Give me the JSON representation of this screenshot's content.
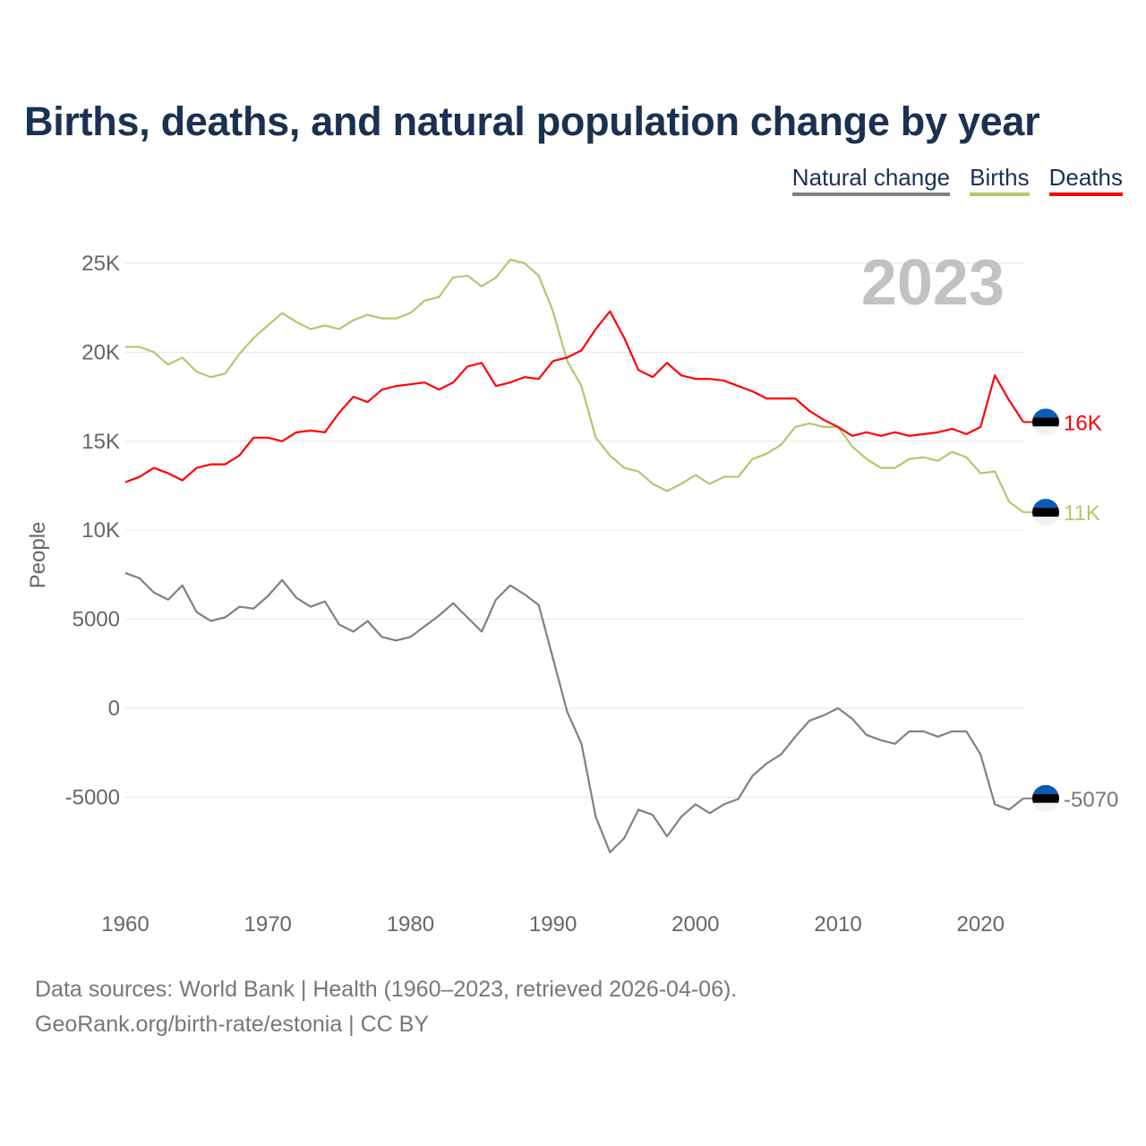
{
  "chart_data": {
    "type": "line",
    "title": "Births, deaths, and natural population change by year",
    "ylabel": "People",
    "xlabel": "",
    "current_year_label": "2023",
    "xlim": [
      1960,
      2023
    ],
    "ylim": [
      -10000,
      27000
    ],
    "grid": true,
    "legend_placement": "top-right",
    "y_ticks": [
      {
        "v": 25000,
        "label": "25K"
      },
      {
        "v": 20000,
        "label": "20K"
      },
      {
        "v": 15000,
        "label": "15K"
      },
      {
        "v": 10000,
        "label": "10K"
      },
      {
        "v": 5000,
        "label": "5000"
      },
      {
        "v": 0,
        "label": "0"
      },
      {
        "v": -5000,
        "label": "-5000"
      }
    ],
    "x_ticks": [
      {
        "v": 1960,
        "label": "1960"
      },
      {
        "v": 1970,
        "label": "1970"
      },
      {
        "v": 1980,
        "label": "1980"
      },
      {
        "v": 1990,
        "label": "1990"
      },
      {
        "v": 2000,
        "label": "2000"
      },
      {
        "v": 2010,
        "label": "2010"
      },
      {
        "v": 2020,
        "label": "2020"
      }
    ],
    "x_start": 1960,
    "series": [
      {
        "name": "Natural change",
        "color": "#808080",
        "end_label": "-5070",
        "values": [
          7600,
          7300,
          6500,
          6100,
          6900,
          5400,
          4900,
          5100,
          5700,
          5600,
          6300,
          7200,
          6200,
          5700,
          6000,
          4700,
          4300,
          4900,
          4000,
          3800,
          4000,
          4600,
          5200,
          5900,
          5100,
          4300,
          6100,
          6900,
          6400,
          5800,
          2800,
          -200,
          -2000,
          -6100,
          -8100,
          -7300,
          -5700,
          -6000,
          -7200,
          -6100,
          -5400,
          -5900,
          -5400,
          -5100,
          -3800,
          -3100,
          -2600,
          -1600,
          -700,
          -400,
          0,
          -600,
          -1500,
          -1800,
          -2000,
          -1300,
          -1300,
          -1600,
          -1300,
          -1300,
          -2600,
          -5400,
          -5700,
          -5070
        ]
      },
      {
        "name": "Births",
        "color": "#b5c76a",
        "end_label": "11K",
        "values": [
          20300,
          20300,
          20000,
          19300,
          19700,
          18900,
          18600,
          18800,
          19900,
          20800,
          21500,
          22200,
          21700,
          21300,
          21500,
          21300,
          21800,
          22100,
          21900,
          21900,
          22200,
          22900,
          23100,
          24200,
          24300,
          23700,
          24200,
          25200,
          25000,
          24300,
          22300,
          19500,
          18100,
          15200,
          14200,
          13500,
          13300,
          12600,
          12200,
          12600,
          13100,
          12600,
          13000,
          13000,
          14000,
          14300,
          14800,
          15800,
          16000,
          15800,
          15800,
          14700,
          14000,
          13500,
          13500,
          14000,
          14100,
          13900,
          14400,
          14100,
          13200,
          13300,
          11600,
          11010
        ]
      },
      {
        "name": "Deaths",
        "color": "#ff0000",
        "end_label": "16K",
        "values": [
          12700,
          13000,
          13500,
          13200,
          12800,
          13500,
          13700,
          13700,
          14200,
          15200,
          15200,
          15000,
          15500,
          15600,
          15500,
          16600,
          17500,
          17200,
          17900,
          18100,
          18200,
          18300,
          17900,
          18300,
          19200,
          19400,
          18100,
          18300,
          18600,
          18500,
          19500,
          19700,
          20100,
          21300,
          22300,
          20800,
          19000,
          18600,
          19400,
          18700,
          18500,
          18500,
          18400,
          18100,
          17800,
          17400,
          17400,
          17400,
          16700,
          16200,
          15800,
          15300,
          15500,
          15300,
          15500,
          15300,
          15400,
          15500,
          15700,
          15400,
          15800,
          18700,
          17300,
          16080
        ]
      }
    ]
  },
  "footer": {
    "line1": "Data sources: World Bank | Health (1960–2023, retrieved 2026-04-06).",
    "line2": "GeoRank.org/birth-rate/estonia | CC BY"
  },
  "flag_colors": {
    "blue": "#0a5bb8",
    "black": "#000000",
    "white": "#f2f2f2"
  }
}
